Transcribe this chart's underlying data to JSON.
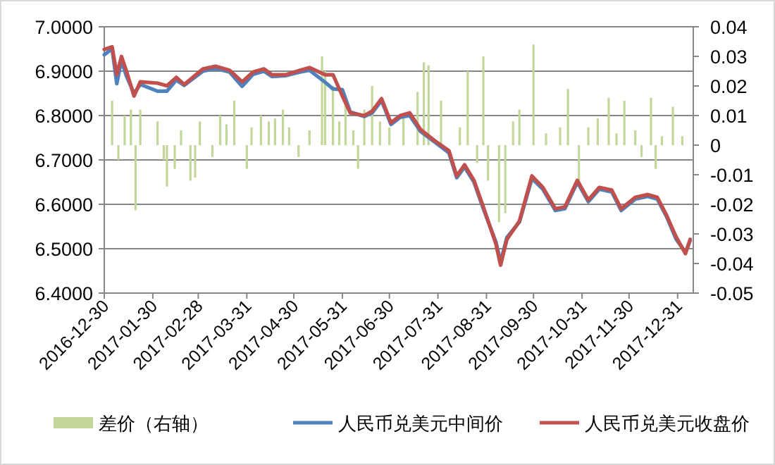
{
  "chart_data": {
    "type": "line",
    "xlim": [
      "2016-12-30",
      "2018-01-10"
    ],
    "xticks": [
      "2016-12-30",
      "2017-01-30",
      "2017-02-28",
      "2017-03-31",
      "2017-04-30",
      "2017-05-31",
      "2017-06-30",
      "2017-07-31",
      "2017-08-31",
      "2017-09-30",
      "2017-10-31",
      "2017-11-30",
      "2017-12-31"
    ],
    "ylim": [
      6.4,
      7.0
    ],
    "yticks": [
      {
        "value": 6.4,
        "label": "6.4000"
      },
      {
        "value": 6.5,
        "label": "6.5000"
      },
      {
        "value": 6.6,
        "label": "6.6000"
      },
      {
        "value": 6.7,
        "label": "6.7000"
      },
      {
        "value": 6.8,
        "label": "6.8000"
      },
      {
        "value": 6.9,
        "label": "6.9000"
      },
      {
        "value": 7.0,
        "label": "7.0000"
      }
    ],
    "y2lim": [
      -0.05,
      0.04
    ],
    "y2ticks": [
      -0.05,
      -0.04,
      -0.03,
      -0.02,
      -0.01,
      0,
      0.01,
      0.02,
      0.03,
      0.04
    ],
    "grid": "y",
    "legend": "bottom",
    "series": [
      {
        "name": "差价（右轴）",
        "type": "bar",
        "axis": "y2",
        "color": "#c4d79b",
        "x": [
          "2017-01-04",
          "2017-01-08",
          "2017-01-12",
          "2017-01-16",
          "2017-01-19",
          "2017-01-22",
          "2017-02-02",
          "2017-02-06",
          "2017-02-08",
          "2017-02-13",
          "2017-02-17",
          "2017-02-23",
          "2017-02-26",
          "2017-03-01",
          "2017-03-09",
          "2017-03-14",
          "2017-03-18",
          "2017-03-23",
          "2017-03-31",
          "2017-04-03",
          "2017-04-09",
          "2017-04-14",
          "2017-04-18",
          "2017-04-23",
          "2017-04-27",
          "2017-05-03",
          "2017-05-10",
          "2017-05-18",
          "2017-05-20",
          "2017-05-25",
          "2017-05-29",
          "2017-06-02",
          "2017-06-07",
          "2017-06-10",
          "2017-06-14",
          "2017-06-19",
          "2017-06-24",
          "2017-06-30",
          "2017-07-09",
          "2017-07-18",
          "2017-07-22",
          "2017-07-25",
          "2017-08-02",
          "2017-08-14",
          "2017-08-19",
          "2017-08-25",
          "2017-08-29",
          "2017-09-01",
          "2017-09-08",
          "2017-09-12",
          "2017-09-17",
          "2017-09-21",
          "2017-09-30",
          "2017-10-08",
          "2017-10-17",
          "2017-10-22",
          "2017-10-29",
          "2017-11-04",
          "2017-11-10",
          "2017-11-17",
          "2017-11-22",
          "2017-11-27",
          "2017-12-04",
          "2017-12-08",
          "2017-12-14",
          "2017-12-17",
          "2017-12-21",
          "2017-12-28",
          "2018-01-03"
        ],
        "values": [
          0.015,
          -0.005,
          0.01,
          0.012,
          -0.022,
          0.012,
          0.008,
          -0.005,
          -0.014,
          -0.008,
          0.005,
          -0.012,
          -0.011,
          0.008,
          -0.004,
          0.01,
          0.007,
          0.015,
          -0.008,
          0.006,
          0.01,
          0.008,
          0.009,
          0.012,
          0.006,
          -0.004,
          0.005,
          0.03,
          0.025,
          0.02,
          0.008,
          0.015,
          0.005,
          -0.008,
          0.012,
          0.02,
          0.008,
          0.006,
          0.01,
          0.018,
          0.028,
          0.027,
          0.015,
          0.006,
          0.025,
          -0.006,
          0.03,
          -0.012,
          -0.026,
          -0.023,
          0.008,
          0.012,
          0.034,
          0.004,
          0.006,
          0.019,
          -0.014,
          0.006,
          0.009,
          0.016,
          0.004,
          0.015,
          0.005,
          -0.004,
          0.016,
          -0.008,
          0.003,
          0.013,
          0.003
        ]
      },
      {
        "name": "人民币兑美元中间价",
        "color": "#4f81bd",
        "x": [
          "2016-12-30",
          "2017-01-04",
          "2017-01-07",
          "2017-01-10",
          "2017-01-13",
          "2017-01-18",
          "2017-01-22",
          "2017-02-02",
          "2017-02-08",
          "2017-02-14",
          "2017-02-19",
          "2017-03-03",
          "2017-03-11",
          "2017-03-20",
          "2017-03-28",
          "2017-04-04",
          "2017-04-11",
          "2017-04-16",
          "2017-04-25",
          "2017-05-04",
          "2017-05-10",
          "2017-05-20",
          "2017-05-25",
          "2017-05-31",
          "2017-06-05",
          "2017-06-14",
          "2017-06-19",
          "2017-06-25",
          "2017-07-01",
          "2017-07-07",
          "2017-07-13",
          "2017-07-20",
          "2017-07-29",
          "2017-08-07",
          "2017-08-12",
          "2017-08-17",
          "2017-08-23",
          "2017-08-29",
          "2017-09-06",
          "2017-09-09",
          "2017-09-13",
          "2017-09-21",
          "2017-09-29",
          "2017-10-06",
          "2017-10-14",
          "2017-10-20",
          "2017-10-28",
          "2017-11-04",
          "2017-11-11",
          "2017-11-19",
          "2017-11-25",
          "2017-12-04",
          "2017-12-12",
          "2017-12-18",
          "2017-12-24",
          "2017-12-30",
          "2018-01-05",
          "2018-01-08"
        ],
        "values": [
          6.937,
          6.95,
          6.872,
          6.925,
          6.89,
          6.85,
          6.87,
          6.855,
          6.855,
          6.88,
          6.868,
          6.9,
          6.906,
          6.898,
          6.866,
          6.893,
          6.9,
          6.888,
          6.89,
          6.898,
          6.902,
          6.875,
          6.86,
          6.858,
          6.808,
          6.798,
          6.806,
          6.834,
          6.78,
          6.796,
          6.8,
          6.764,
          6.74,
          6.716,
          6.66,
          6.684,
          6.65,
          6.59,
          6.515,
          6.47,
          6.525,
          6.56,
          6.658,
          6.634,
          6.586,
          6.59,
          6.65,
          6.606,
          6.634,
          6.628,
          6.586,
          6.612,
          6.618,
          6.612,
          6.572,
          6.522,
          6.492,
          6.518
        ]
      },
      {
        "name": "人民币兑美元收盘价",
        "color": "#c0504d",
        "x": [
          "2016-12-30",
          "2017-01-04",
          "2017-01-07",
          "2017-01-10",
          "2017-01-13",
          "2017-01-18",
          "2017-01-22",
          "2017-02-02",
          "2017-02-08",
          "2017-02-14",
          "2017-02-19",
          "2017-03-03",
          "2017-03-11",
          "2017-03-20",
          "2017-03-28",
          "2017-04-04",
          "2017-04-11",
          "2017-04-16",
          "2017-04-25",
          "2017-05-04",
          "2017-05-10",
          "2017-05-20",
          "2017-05-25",
          "2017-05-31",
          "2017-06-05",
          "2017-06-14",
          "2017-06-19",
          "2017-06-25",
          "2017-07-01",
          "2017-07-07",
          "2017-07-13",
          "2017-07-20",
          "2017-07-29",
          "2017-08-07",
          "2017-08-12",
          "2017-08-17",
          "2017-08-23",
          "2017-08-29",
          "2017-09-06",
          "2017-09-09",
          "2017-09-13",
          "2017-09-21",
          "2017-09-29",
          "2017-10-06",
          "2017-10-14",
          "2017-10-20",
          "2017-10-28",
          "2017-11-04",
          "2017-11-11",
          "2017-11-19",
          "2017-11-25",
          "2017-12-04",
          "2017-12-12",
          "2017-12-18",
          "2017-12-24",
          "2017-12-30",
          "2018-01-05",
          "2018-01-08"
        ],
        "values": [
          6.949,
          6.955,
          6.892,
          6.933,
          6.902,
          6.844,
          6.876,
          6.873,
          6.867,
          6.886,
          6.87,
          6.905,
          6.911,
          6.902,
          6.876,
          6.898,
          6.905,
          6.892,
          6.892,
          6.902,
          6.908,
          6.892,
          6.892,
          6.844,
          6.806,
          6.8,
          6.81,
          6.838,
          6.784,
          6.8,
          6.806,
          6.768,
          6.743,
          6.721,
          6.664,
          6.689,
          6.654,
          6.594,
          6.511,
          6.463,
          6.521,
          6.562,
          6.664,
          6.638,
          6.59,
          6.594,
          6.654,
          6.61,
          6.638,
          6.632,
          6.59,
          6.616,
          6.622,
          6.616,
          6.575,
          6.527,
          6.489,
          6.521
        ]
      }
    ]
  }
}
